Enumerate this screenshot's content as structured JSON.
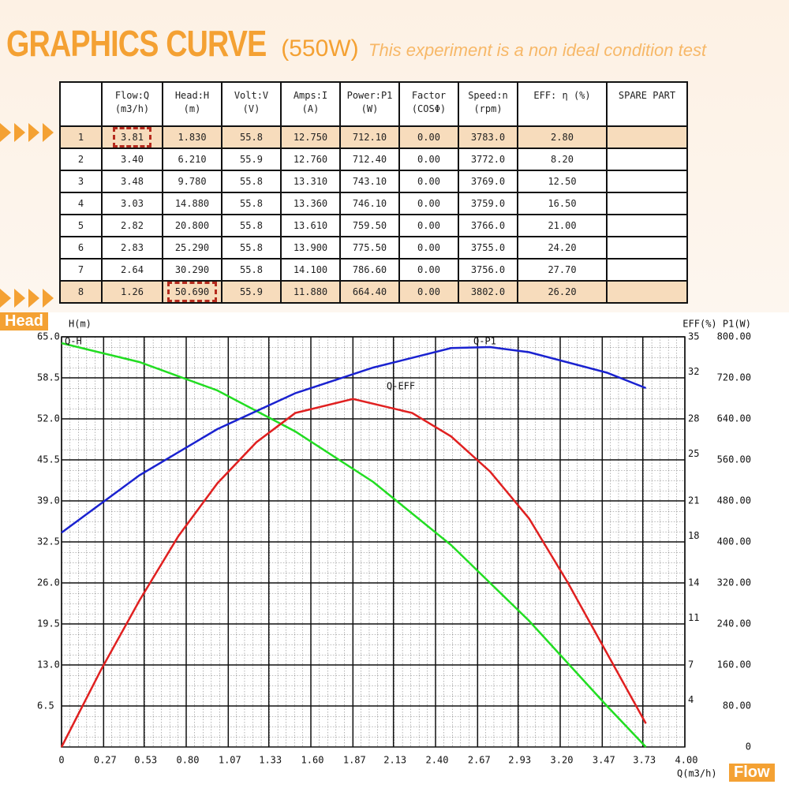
{
  "header": {
    "title": "GRAPHICS CURVE",
    "power": "(550W)",
    "note": "This experiment is a non ideal condition test"
  },
  "table": {
    "columns": [
      [
        ""
      ],
      [
        "Flow:Q",
        "(m3/h)"
      ],
      [
        "Head:H",
        "(m)"
      ],
      [
        "Volt:V",
        "(V)"
      ],
      [
        "Amps:I",
        "(A)"
      ],
      [
        "Power:P1",
        "(W)"
      ],
      [
        "Factor",
        "(COSΦ)"
      ],
      [
        "Speed:n",
        "(rpm)"
      ],
      [
        "EFF: η (%)"
      ],
      [
        "SPARE PART"
      ]
    ],
    "rows": [
      [
        "1",
        "3.81",
        "1.830",
        "55.8",
        "12.750",
        "712.10",
        "0.00",
        "3783.0",
        "2.80",
        ""
      ],
      [
        "2",
        "3.40",
        "6.210",
        "55.9",
        "12.760",
        "712.40",
        "0.00",
        "3772.0",
        "8.20",
        ""
      ],
      [
        "3",
        "3.48",
        "9.780",
        "55.8",
        "13.310",
        "743.10",
        "0.00",
        "3769.0",
        "12.50",
        ""
      ],
      [
        "4",
        "3.03",
        "14.880",
        "55.8",
        "13.360",
        "746.10",
        "0.00",
        "3759.0",
        "16.50",
        ""
      ],
      [
        "5",
        "2.82",
        "20.800",
        "55.8",
        "13.610",
        "759.50",
        "0.00",
        "3766.0",
        "21.00",
        ""
      ],
      [
        "6",
        "2.83",
        "25.290",
        "55.8",
        "13.900",
        "775.50",
        "0.00",
        "3755.0",
        "24.20",
        ""
      ],
      [
        "7",
        "2.64",
        "30.290",
        "55.8",
        "14.100",
        "786.60",
        "0.00",
        "3756.0",
        "27.70",
        ""
      ],
      [
        "8",
        "1.26",
        "50.690",
        "55.9",
        "11.880",
        "664.40",
        "0.00",
        "3802.0",
        "26.20",
        ""
      ]
    ],
    "highlight_rows": [
      0,
      7
    ],
    "marked_cells": [
      [
        0,
        1
      ],
      [
        7,
        2
      ]
    ]
  },
  "tags": {
    "head": "Head",
    "flow": "Flow"
  },
  "chart_data": {
    "type": "line",
    "x_label": "Q(m3/h)",
    "y_label": "H(m)",
    "y2_label": "EFF(%) P1(W)",
    "xlim": [
      0,
      4
    ],
    "xticks": [
      0,
      0.27,
      0.53,
      {
        "value": 0.8,
        "label": "0.80"
      },
      1.07,
      1.33,
      {
        "value": 1.6,
        "label": "1.60"
      },
      1.87,
      2.13,
      {
        "value": 2.4,
        "label": "2.40"
      },
      2.67,
      2.93,
      {
        "value": 3.2,
        "label": "3.20"
      },
      3.47,
      3.73,
      {
        "value": 4,
        "label": "4.00"
      }
    ],
    "ylim": [
      0,
      65
    ],
    "yticks": [
      6.5,
      {
        "value": 13,
        "label": "13.0"
      },
      19.5,
      {
        "value": 26,
        "label": "26.0"
      },
      32.5,
      {
        "value": 39,
        "label": "39.0"
      },
      45.5,
      {
        "value": 52,
        "label": "52.0"
      },
      58.5,
      {
        "value": 65,
        "label": "65.0"
      }
    ],
    "y2lim": [
      0,
      35
    ],
    "y2ticks": [
      4,
      7,
      11,
      14,
      18,
      21,
      25,
      28,
      32,
      35
    ],
    "y3lim": [
      0,
      800
    ],
    "y3ticks": [
      0,
      {
        "value": 80,
        "label": "80.00"
      },
      {
        "value": 160,
        "label": "160.00"
      },
      {
        "value": 240,
        "label": "240.00"
      },
      {
        "value": 320,
        "label": "320.00"
      },
      {
        "value": 400,
        "label": "400.00"
      },
      {
        "value": 480,
        "label": "480.00"
      },
      {
        "value": 560,
        "label": "560.00"
      },
      {
        "value": 640,
        "label": "640.00"
      },
      {
        "value": 720,
        "label": "720.00"
      },
      {
        "value": 800,
        "label": "800.00"
      }
    ],
    "grid": true,
    "series": [
      {
        "name": "Q-H",
        "color": "#22dd22",
        "axis": "y",
        "x": [
          0,
          0.5,
          1.0,
          1.5,
          2.0,
          2.5,
          3.0,
          3.5,
          3.75
        ],
        "values": [
          64,
          61,
          56.5,
          50,
          42,
          32,
          20,
          6.5,
          0
        ]
      },
      {
        "name": "Q-P1",
        "color": "#1a22d0",
        "axis": "y3",
        "x": [
          0,
          0.5,
          1.0,
          1.5,
          2.0,
          2.5,
          2.75,
          3.0,
          3.5,
          3.75
        ],
        "values": [
          418,
          530,
          620,
          690,
          740,
          778,
          780,
          770,
          730,
          700
        ]
      },
      {
        "name": "Q-EFF",
        "color": "#e02020",
        "axis": "y2",
        "x": [
          0,
          0.25,
          0.5,
          0.75,
          1.0,
          1.25,
          1.5,
          1.87,
          2.25,
          2.5,
          2.75,
          3.0,
          3.25,
          3.5,
          3.75
        ],
        "values": [
          0,
          6.5,
          12.5,
          18,
          22.5,
          26,
          28.5,
          29.7,
          28.5,
          26.5,
          23.5,
          19.5,
          14,
          8,
          2
        ]
      }
    ]
  }
}
